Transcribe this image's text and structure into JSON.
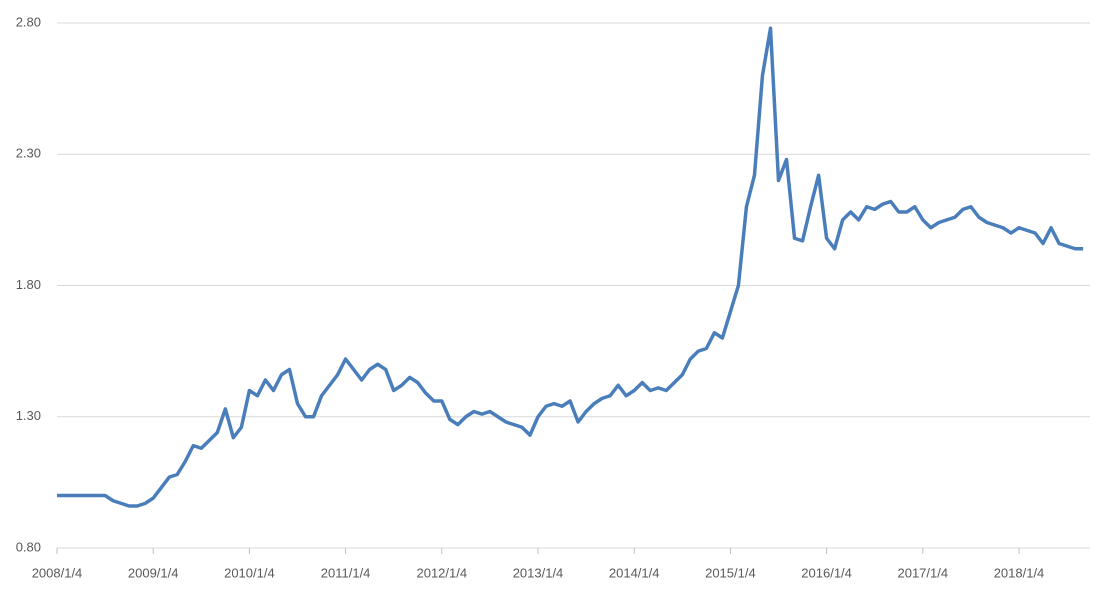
{
  "chart_data": {
    "type": "line",
    "categories": [
      "2008/1/4",
      null,
      null,
      null,
      null,
      null,
      null,
      null,
      null,
      null,
      null,
      null,
      "2009/1/4",
      null,
      null,
      null,
      null,
      null,
      null,
      null,
      null,
      null,
      null,
      null,
      "2010/1/4",
      null,
      null,
      null,
      null,
      null,
      null,
      null,
      null,
      null,
      null,
      null,
      "2011/1/4",
      null,
      null,
      null,
      null,
      null,
      null,
      null,
      null,
      null,
      null,
      null,
      "2012/1/4",
      null,
      null,
      null,
      null,
      null,
      null,
      null,
      null,
      null,
      null,
      null,
      "2013/1/4",
      null,
      null,
      null,
      null,
      null,
      null,
      null,
      null,
      null,
      null,
      null,
      "2014/1/4",
      null,
      null,
      null,
      null,
      null,
      null,
      null,
      null,
      null,
      null,
      null,
      "2015/1/4",
      null,
      null,
      null,
      null,
      null,
      null,
      null,
      null,
      null,
      null,
      null,
      "2016/1/4",
      null,
      null,
      null,
      null,
      null,
      null,
      null,
      null,
      null,
      null,
      null,
      "2017/1/4",
      null,
      null,
      null,
      null,
      null,
      null,
      null,
      null,
      null,
      null,
      null,
      "2018/1/4",
      null,
      null,
      null,
      null,
      null,
      null,
      null,
      null
    ],
    "values": [
      1.0,
      1.0,
      1.0,
      1.0,
      1.0,
      1.0,
      1.0,
      0.98,
      0.97,
      0.96,
      0.96,
      0.97,
      0.99,
      1.03,
      1.07,
      1.08,
      1.13,
      1.19,
      1.18,
      1.21,
      1.24,
      1.33,
      1.22,
      1.26,
      1.4,
      1.38,
      1.44,
      1.4,
      1.46,
      1.48,
      1.35,
      1.3,
      1.3,
      1.38,
      1.42,
      1.46,
      1.52,
      1.48,
      1.44,
      1.48,
      1.5,
      1.48,
      1.4,
      1.42,
      1.45,
      1.43,
      1.39,
      1.36,
      1.36,
      1.29,
      1.27,
      1.3,
      1.32,
      1.31,
      1.32,
      1.3,
      1.28,
      1.27,
      1.26,
      1.23,
      1.3,
      1.34,
      1.35,
      1.34,
      1.36,
      1.28,
      1.32,
      1.35,
      1.37,
      1.38,
      1.42,
      1.38,
      1.4,
      1.43,
      1.4,
      1.41,
      1.4,
      1.43,
      1.46,
      1.52,
      1.55,
      1.56,
      1.62,
      1.6,
      1.7,
      1.8,
      2.1,
      2.22,
      2.6,
      2.78,
      2.2,
      2.28,
      1.98,
      1.97,
      2.1,
      2.22,
      1.98,
      1.94,
      2.05,
      2.08,
      2.05,
      2.1,
      2.09,
      2.11,
      2.12,
      2.08,
      2.08,
      2.1,
      2.05,
      2.02,
      2.04,
      2.05,
      2.06,
      2.09,
      2.1,
      2.06,
      2.04,
      2.03,
      2.02,
      2.0,
      2.02,
      2.01,
      2.0,
      1.96,
      2.02,
      1.96,
      1.95,
      1.94,
      1.94
    ],
    "color": "#4a7ebb",
    "ylim": [
      0.8,
      2.8
    ],
    "yticks": [
      {
        "value": 0.8,
        "label": "0.80"
      },
      {
        "value": 1.3,
        "label": "1.30"
      },
      {
        "value": 1.8,
        "label": "1.80"
      },
      {
        "value": 2.3,
        "label": "2.30"
      },
      {
        "value": 2.8,
        "label": "2.80"
      }
    ],
    "grid": true
  }
}
